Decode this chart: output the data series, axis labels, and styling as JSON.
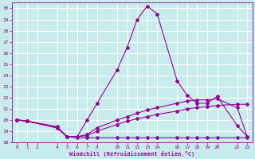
{
  "xlabel": "Windchill (Refroidissement éolien,°C)",
  "background_color": "#c8ecec",
  "grid_color": "#b8dede",
  "line_color": "#990099",
  "ylim": [
    18,
    30.5
  ],
  "yticks": [
    18,
    19,
    20,
    21,
    22,
    23,
    24,
    25,
    26,
    27,
    28,
    29,
    30
  ],
  "xtick_labels": [
    "0",
    "1",
    "2",
    "4",
    "5",
    "6",
    "7",
    "8",
    "10",
    "11",
    "12",
    "13",
    "14",
    "16",
    "17",
    "18",
    "19",
    "20",
    "22",
    "23"
  ],
  "xtick_positions": [
    0,
    1,
    2,
    4,
    5,
    6,
    7,
    8,
    10,
    11,
    12,
    13,
    14,
    16,
    17,
    18,
    19,
    20,
    22,
    23
  ],
  "xlim": [
    -0.5,
    23.5
  ],
  "series": [
    {
      "x": [
        0,
        1,
        4,
        5,
        6,
        7,
        8,
        10,
        11,
        12,
        13,
        14,
        16,
        17,
        18,
        19,
        20,
        22,
        23
      ],
      "y": [
        20.0,
        19.9,
        19.4,
        18.5,
        18.5,
        20.0,
        21.5,
        24.5,
        26.5,
        29.0,
        30.2,
        29.5,
        23.5,
        22.2,
        21.5,
        21.5,
        22.1,
        19.5,
        18.5
      ]
    },
    {
      "x": [
        0,
        1,
        4,
        5,
        6,
        7,
        8,
        10,
        11,
        12,
        13,
        14,
        16,
        17,
        18,
        19,
        20,
        22,
        23
      ],
      "y": [
        20.0,
        19.9,
        19.3,
        18.5,
        18.4,
        18.4,
        18.4,
        18.4,
        18.4,
        18.4,
        18.4,
        18.4,
        18.4,
        18.4,
        18.4,
        18.4,
        18.4,
        18.4,
        18.4
      ]
    },
    {
      "x": [
        0,
        1,
        4,
        5,
        6,
        7,
        8,
        10,
        11,
        12,
        13,
        14,
        16,
        17,
        18,
        19,
        20,
        22,
        23
      ],
      "y": [
        20.0,
        19.9,
        19.3,
        18.5,
        18.5,
        18.7,
        19.3,
        20.0,
        20.3,
        20.6,
        20.9,
        21.1,
        21.5,
        21.7,
        21.8,
        21.8,
        21.9,
        21.1,
        18.5
      ]
    },
    {
      "x": [
        0,
        1,
        4,
        5,
        6,
        7,
        8,
        10,
        11,
        12,
        13,
        14,
        16,
        17,
        18,
        19,
        20,
        22,
        23
      ],
      "y": [
        20.0,
        19.9,
        19.3,
        18.5,
        18.5,
        18.6,
        19.0,
        19.6,
        19.9,
        20.1,
        20.3,
        20.5,
        20.8,
        21.0,
        21.1,
        21.2,
        21.3,
        21.4,
        21.4
      ]
    }
  ]
}
